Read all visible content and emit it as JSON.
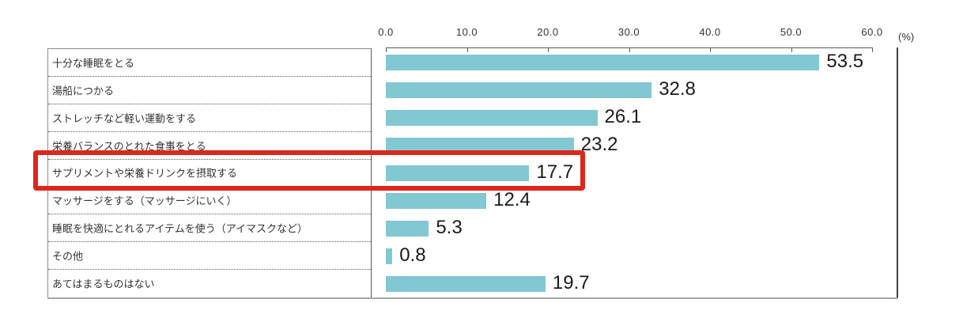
{
  "chart_data": {
    "type": "bar",
    "orientation": "horizontal",
    "title": "",
    "categories": [
      "十分な睡眠をとる",
      "湯船につかる",
      "ストレッチなど軽い運動をする",
      "栄養バランスのとれた食事をとる",
      "サプリメントや栄養ドリンクを摂取する",
      "マッサージをする（マッサージにいく）",
      "睡眠を快適にとれるアイテムを使う（アイマスクなど）",
      "その他",
      "あてはまるものはない"
    ],
    "values": [
      53.5,
      32.8,
      26.1,
      23.2,
      17.7,
      12.4,
      5.3,
      0.8,
      19.7
    ],
    "value_labels": [
      "53.5",
      "32.8",
      "26.1",
      "23.2",
      "17.7",
      "12.4",
      "5.3",
      "0.8",
      "19.7"
    ],
    "xlabel": "(%)",
    "xlim": [
      0,
      60
    ],
    "x_tick_values": [
      0,
      10,
      20,
      30,
      40,
      50,
      60
    ],
    "x_tick_labels": [
      "0.0",
      "10.0",
      "20.0",
      "30.0",
      "40.0",
      "50.0",
      "60.0"
    ],
    "grid": false,
    "legend": "none",
    "bar_color": "#82c8d2",
    "highlight": {
      "row_index": 4,
      "category": "サプリメントや栄養ドリンクを摂取する",
      "value": 17.7,
      "box_color": "#da291c"
    }
  }
}
